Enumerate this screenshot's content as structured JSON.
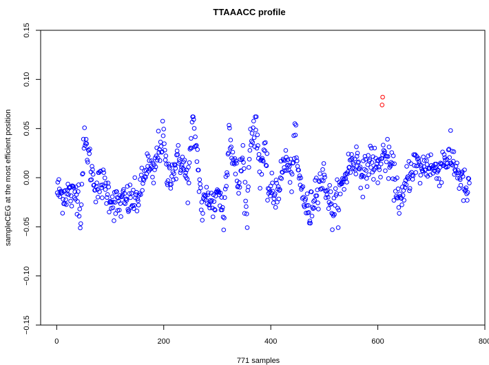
{
  "chart_data": {
    "type": "scatter",
    "title": "TTAAACC profile",
    "xlabel": "771 samples",
    "ylabel": "sampleCEG at the most efficient position",
    "xlim": [
      -30,
      800
    ],
    "ylim": [
      -0.15,
      0.15
    ],
    "xticks": [
      0,
      200,
      400,
      600,
      800
    ],
    "yticks": [
      -0.15,
      -0.1,
      -0.05,
      0.0,
      0.05,
      0.1,
      0.15
    ],
    "xtick_labels": [
      "0",
      "200",
      "400",
      "600",
      "800"
    ],
    "ytick_labels": [
      "−0.15",
      "−0.10",
      "−0.05",
      "0.00",
      "0.05",
      "0.10",
      "0.15"
    ],
    "grid": false,
    "legend": "none",
    "marker": "open-circle",
    "colors": {
      "normal": "#0000ff",
      "highlight": "#ff0000"
    },
    "n_samples": 771,
    "highlight_points": [
      {
        "x": 609,
        "y": 0.082
      },
      {
        "x": 608,
        "y": 0.074
      }
    ],
    "segment_profile": [
      [
        0,
        -0.012
      ],
      [
        10,
        -0.018
      ],
      [
        20,
        -0.014
      ],
      [
        30,
        -0.02
      ],
      [
        40,
        -0.012
      ],
      [
        45,
        -0.04
      ],
      [
        50,
        0.034
      ],
      [
        58,
        0.028
      ],
      [
        65,
        0.006
      ],
      [
        75,
        -0.01
      ],
      [
        85,
        -0.005
      ],
      [
        95,
        -0.014
      ],
      [
        110,
        -0.028
      ],
      [
        130,
        -0.024
      ],
      [
        150,
        -0.022
      ],
      [
        162,
        -0.005
      ],
      [
        168,
        0.015
      ],
      [
        180,
        0.0
      ],
      [
        190,
        0.03
      ],
      [
        200,
        0.04
      ],
      [
        205,
        0.002
      ],
      [
        220,
        0.01
      ],
      [
        232,
        0.02
      ],
      [
        245,
        -0.005
      ],
      [
        255,
        0.055
      ],
      [
        262,
        0.025
      ],
      [
        272,
        -0.035
      ],
      [
        282,
        -0.015
      ],
      [
        292,
        -0.03
      ],
      [
        302,
        -0.01
      ],
      [
        312,
        -0.042
      ],
      [
        322,
        0.05
      ],
      [
        330,
        0.018
      ],
      [
        340,
        -0.01
      ],
      [
        348,
        0.025
      ],
      [
        355,
        -0.045
      ],
      [
        362,
        0.045
      ],
      [
        372,
        0.052
      ],
      [
        380,
        0.01
      ],
      [
        388,
        0.025
      ],
      [
        395,
        -0.01
      ],
      [
        405,
        -0.018
      ],
      [
        415,
        -0.008
      ],
      [
        428,
        0.02
      ],
      [
        438,
        -0.002
      ],
      [
        445,
        0.04
      ],
      [
        452,
        0.0
      ],
      [
        462,
        -0.02
      ],
      [
        472,
        -0.04
      ],
      [
        485,
        -0.008
      ],
      [
        500,
        0.0
      ],
      [
        515,
        -0.035
      ],
      [
        530,
        -0.015
      ],
      [
        545,
        0.012
      ],
      [
        560,
        0.02
      ],
      [
        575,
        0.0
      ],
      [
        585,
        0.02
      ],
      [
        600,
        0.008
      ],
      [
        612,
        0.025
      ],
      [
        625,
        0.01
      ],
      [
        635,
        -0.01
      ],
      [
        645,
        -0.03
      ],
      [
        655,
        0.0
      ],
      [
        668,
        0.015
      ],
      [
        680,
        0.008
      ],
      [
        695,
        0.015
      ],
      [
        710,
        0.005
      ],
      [
        725,
        0.02
      ],
      [
        740,
        0.018
      ],
      [
        750,
        0.005
      ],
      [
        765,
        -0.015
      ]
    ],
    "noise_sd": 0.009
  }
}
